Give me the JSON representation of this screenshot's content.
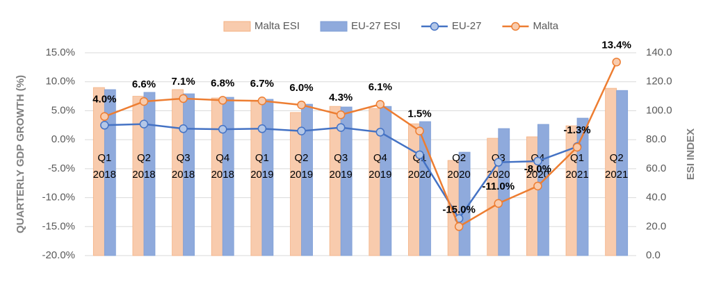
{
  "chart_data": {
    "type": "bar",
    "categories": [
      [
        "Q1",
        "2018"
      ],
      [
        "Q2",
        "2018"
      ],
      [
        "Q3",
        "2018"
      ],
      [
        "Q4",
        "2018"
      ],
      [
        "Q1",
        "2019"
      ],
      [
        "Q2",
        "2019"
      ],
      [
        "Q3",
        "2019"
      ],
      [
        "Q4",
        "2019"
      ],
      [
        "Q1",
        "2020"
      ],
      [
        "Q2",
        "2020"
      ],
      [
        "Q3",
        "2020"
      ],
      [
        "Q4",
        "2020"
      ],
      [
        "Q1",
        "2021"
      ],
      [
        "Q2",
        "2021"
      ]
    ],
    "y_label": "QUARTERLY GDP GROWTH (%)",
    "y2_label": "ESI INDEX",
    "ylim": [
      -20,
      15
    ],
    "yticks": [
      {
        "value": -20,
        "label": "-20.0%"
      },
      {
        "value": -15,
        "label": "-15.0%"
      },
      {
        "value": -10,
        "label": "-10.0%"
      },
      {
        "value": -5,
        "label": "-5.0%"
      },
      {
        "value": 0,
        "label": "0.0%"
      },
      {
        "value": 5,
        "label": "5.0%"
      },
      {
        "value": 10,
        "label": "10.0%"
      },
      {
        "value": 15,
        "label": "15.0%"
      }
    ],
    "y2lim": [
      0,
      140
    ],
    "y2ticks": [
      {
        "value": 0,
        "label": "0.0"
      },
      {
        "value": 20,
        "label": "20.0"
      },
      {
        "value": 40,
        "label": "40.0"
      },
      {
        "value": 60,
        "label": "60.0"
      },
      {
        "value": 80,
        "label": "80.0"
      },
      {
        "value": 100,
        "label": "100.0"
      },
      {
        "value": 120,
        "label": "120.0"
      },
      {
        "value": 140,
        "label": "140.0"
      }
    ],
    "grid": true,
    "legend": "top",
    "series": [
      {
        "name": "Malta ESI",
        "type": "bar",
        "axis": "y2",
        "color": "#f8cbad",
        "values": [
          116,
          110,
          114.6,
          108.8,
          106.9,
          98.8,
          103,
          101.6,
          91,
          65.7,
          81,
          82,
          89.6,
          115.5
        ]
      },
      {
        "name": "EU-27 ESI",
        "type": "bar",
        "axis": "y2",
        "color": "#8faadc",
        "values": [
          114.6,
          112.7,
          111.7,
          109.3,
          107.9,
          104.5,
          102.6,
          103,
          92.5,
          71.4,
          87.7,
          90.6,
          94.9,
          114
        ]
      },
      {
        "name": "EU-27",
        "type": "line",
        "color": "#4472c4",
        "values": [
          2.5,
          2.7,
          1.9,
          1.8,
          1.9,
          1.5,
          2.1,
          1.3,
          -2.6,
          -13.6,
          -3.9,
          -3.7,
          -1.2,
          null
        ]
      },
      {
        "name": "Malta",
        "type": "line",
        "color": "#ed7d31",
        "values": [
          4.0,
          6.6,
          7.1,
          6.8,
          6.7,
          6.0,
          4.3,
          6.1,
          1.5,
          -15.0,
          -11.0,
          -8.0,
          -1.3,
          13.4
        ],
        "value_labels": [
          "4.0%",
          "6.6%",
          "7.1%",
          "6.8%",
          "6.7%",
          "6.0%",
          "4.3%",
          "6.1%",
          "1.5%",
          "-15.0%",
          "-11.0%",
          "-8.0%",
          "-1.3%",
          "13.4%"
        ]
      }
    ]
  }
}
